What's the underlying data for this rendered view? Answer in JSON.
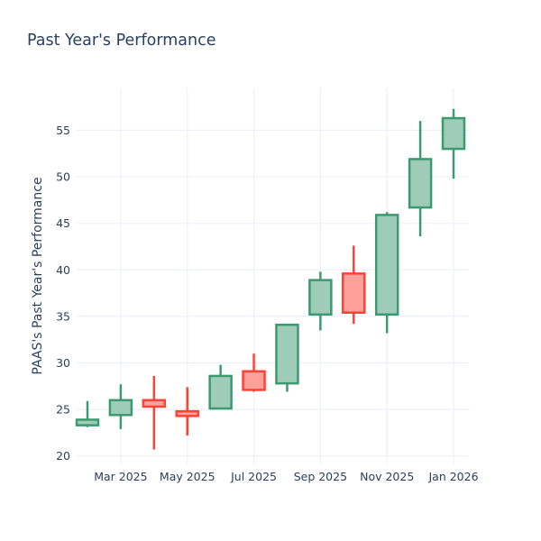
{
  "chart_data": {
    "type": "candlestick",
    "title": "Past Year's Performance",
    "xlabel": "",
    "ylabel": "PAAS's Past Year's Performance",
    "x_tick_labels": [
      "Mar 2025",
      "May 2025",
      "Jul 2025",
      "Sep 2025",
      "Nov 2025",
      "Jan 2026"
    ],
    "y_ticks": [
      20,
      25,
      30,
      35,
      40,
      45,
      50,
      55
    ],
    "ylim": [
      19.1,
      59.5
    ],
    "grid": true,
    "legend": "none",
    "colors": {
      "increasing_line": "#3D9970",
      "increasing_fill": "#9ECCB8",
      "decreasing_line": "#FF4136",
      "decreasing_fill": "#FFA09A",
      "text": "#2a3f5f",
      "grid": "#EBF0F8",
      "background": "#ffffff"
    },
    "candles": [
      {
        "month": "Feb 2025",
        "open": 23.3,
        "high": 25.9,
        "low": 23.1,
        "close": 23.9
      },
      {
        "month": "Mar 2025",
        "open": 24.4,
        "high": 27.7,
        "low": 22.9,
        "close": 26.0
      },
      {
        "month": "Apr 2025",
        "open": 26.0,
        "high": 28.6,
        "low": 20.7,
        "close": 25.3
      },
      {
        "month": "May 2025",
        "open": 24.8,
        "high": 27.4,
        "low": 22.2,
        "close": 24.3
      },
      {
        "month": "Jun 2025",
        "open": 25.1,
        "high": 29.8,
        "low": 25.0,
        "close": 28.6
      },
      {
        "month": "Jul 2025",
        "open": 29.1,
        "high": 31.0,
        "low": 26.9,
        "close": 27.1
      },
      {
        "month": "Aug 2025",
        "open": 27.8,
        "high": 34.1,
        "low": 26.9,
        "close": 34.1
      },
      {
        "month": "Sep 2025",
        "open": 35.2,
        "high": 39.8,
        "low": 33.5,
        "close": 38.9
      },
      {
        "month": "Oct 2025",
        "open": 39.6,
        "high": 42.6,
        "low": 34.2,
        "close": 35.4
      },
      {
        "month": "Nov 2025",
        "open": 35.2,
        "high": 46.2,
        "low": 33.2,
        "close": 45.9
      },
      {
        "month": "Dec 2025",
        "open": 46.7,
        "high": 56.0,
        "low": 43.6,
        "close": 51.9
      },
      {
        "month": "Jan 2026",
        "open": 53.0,
        "high": 57.3,
        "low": 49.8,
        "close": 56.3
      }
    ]
  }
}
